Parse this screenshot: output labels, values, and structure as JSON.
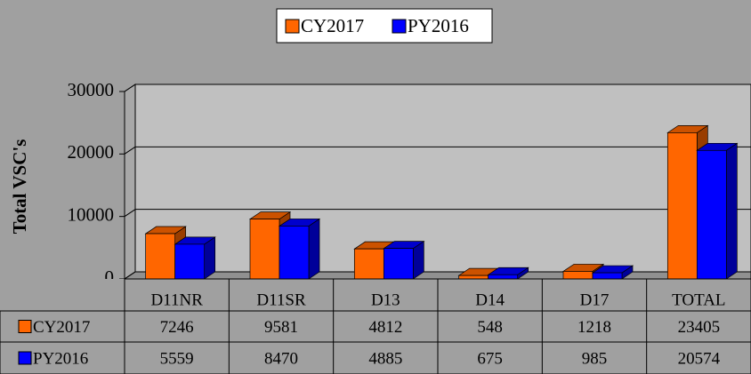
{
  "chart_data": {
    "type": "bar3d",
    "y_label": "Total VSC's",
    "categories": [
      "D11NR",
      "D11SR",
      "D13",
      "D14",
      "D17",
      "TOTAL"
    ],
    "series": [
      {
        "name": "CY2017",
        "color": "#ff6600",
        "values": [
          7246,
          9581,
          4812,
          548,
          1218,
          23405
        ]
      },
      {
        "name": "PY2016",
        "color": "#0000ff",
        "values": [
          5559,
          8470,
          4885,
          675,
          985,
          20574
        ]
      }
    ],
    "ylim": [
      0,
      30000
    ],
    "yticks": [
      0,
      10000,
      20000,
      30000
    ],
    "grid": true,
    "legend": "top",
    "data_table": true
  }
}
